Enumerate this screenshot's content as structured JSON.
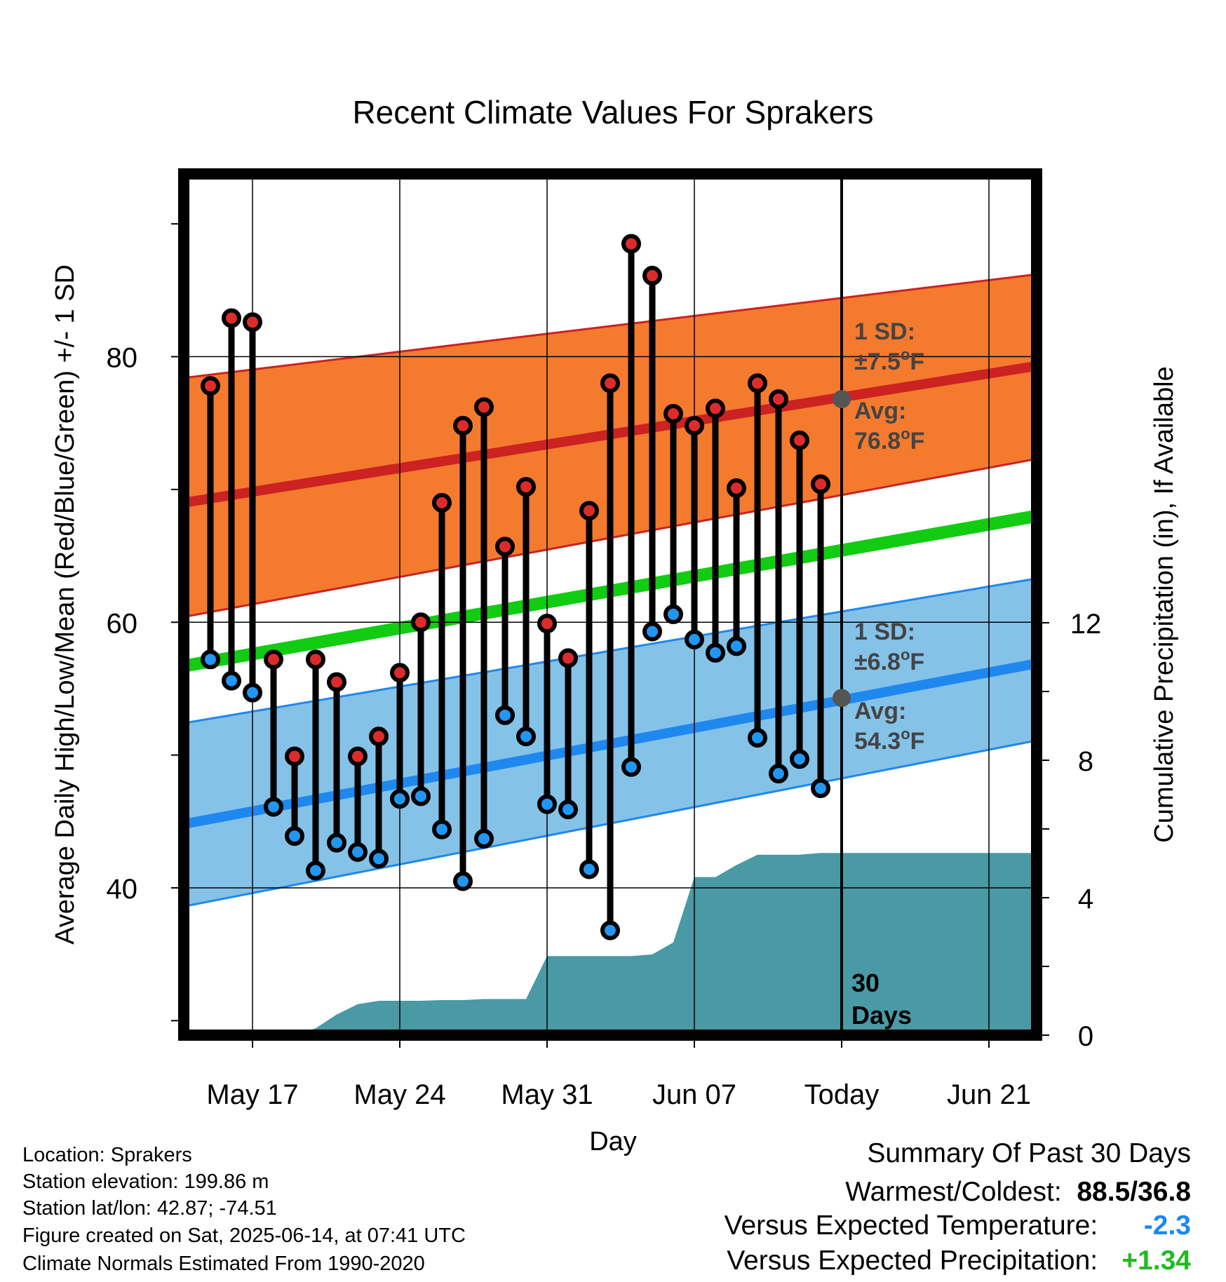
{
  "chart_data": {
    "type": "line",
    "title": "Recent Climate Values For Sprakers",
    "xlabel": "Day",
    "ylabel_left": "Average Daily High/Low/Mean (Red/Blue/Green) +/- 1 SD",
    "ylabel_right": "Cumulative Precipitation (in), If Available",
    "x_tick_labels": [
      "May 17",
      "May 24",
      "May 31",
      "Jun 07",
      "Today",
      "Jun 21"
    ],
    "y_left_ticks": [
      "40",
      "60",
      "80"
    ],
    "y_right_ticks": [
      "0",
      "4",
      "8",
      "12"
    ],
    "ylim_left": [
      29.1,
      94.1
    ],
    "ylim_right": [
      0,
      12
    ],
    "days_label": [
      "30",
      "Days"
    ],
    "normal_high": {
      "avg_start": 69.0,
      "avg_end": 79.3,
      "sd_lower_start": 60.4,
      "sd_lower_end": 72.3,
      "sd_upper_start": 78.4,
      "sd_upper_end": 86.2,
      "color": "#f47a2e",
      "line_color": "#cc2222"
    },
    "normal_low": {
      "avg_start": 44.8,
      "avg_end": 56.9,
      "sd_lower_start": 38.6,
      "sd_lower_end": 51.1,
      "sd_upper_start": 52.4,
      "sd_upper_end": 63.3,
      "color": "#85c2e8",
      "line_color": "#1e88ee"
    },
    "normal_mean": {
      "start": 56.7,
      "end": 68.0,
      "color": "#11cc11"
    },
    "annotations": [
      {
        "line1": "1 SD:",
        "line2_pre": "±7.5",
        "line2_unit": "F"
      },
      {
        "line1": "Avg:",
        "line2_pre": "76.8",
        "line2_unit": "F",
        "value": 76.8
      },
      {
        "line1": "1 SD:",
        "line2_pre": "±6.8",
        "line2_unit": "F"
      },
      {
        "line1": "Avg:",
        "line2_pre": "54.3",
        "line2_unit": "F",
        "value": 54.3
      }
    ],
    "dates": [
      "May 15",
      "May 16",
      "May 17",
      "May 18",
      "May 19",
      "May 20",
      "May 21",
      "May 22",
      "May 23",
      "May 24",
      "May 25",
      "May 26",
      "May 27",
      "May 28",
      "May 29",
      "May 30",
      "May 31",
      "Jun 01",
      "Jun 02",
      "Jun 03",
      "Jun 04",
      "Jun 05",
      "Jun 06",
      "Jun 07",
      "Jun 08",
      "Jun 09",
      "Jun 10",
      "Jun 11",
      "Jun 12",
      "Jun 13"
    ],
    "highs": [
      77.8,
      82.9,
      82.6,
      57.2,
      49.9,
      57.2,
      55.5,
      49.9,
      51.4,
      56.2,
      60.0,
      69.0,
      74.8,
      76.2,
      65.7,
      70.2,
      59.9,
      57.3,
      68.4,
      78.0,
      88.5,
      86.1,
      75.7,
      74.8,
      76.1,
      70.1,
      78.0,
      76.8,
      73.7,
      70.4
    ],
    "lows": [
      57.2,
      55.6,
      54.7,
      46.1,
      43.9,
      41.3,
      43.4,
      42.7,
      42.2,
      46.7,
      46.9,
      44.4,
      40.5,
      43.7,
      53.0,
      51.4,
      46.3,
      45.9,
      41.4,
      36.8,
      49.1,
      59.3,
      60.6,
      58.7,
      57.7,
      58.2,
      51.3,
      48.6,
      49.7,
      47.5
    ],
    "precip_x": [
      "May 15",
      "May 19",
      "May 20",
      "May 21",
      "May 22",
      "May 23",
      "May 24",
      "May 25",
      "May 26",
      "May 27",
      "May 28",
      "May 29",
      "May 30",
      "May 31",
      "Jun 01",
      "Jun 02",
      "Jun 03",
      "Jun 04",
      "Jun 05",
      "Jun 06",
      "Jun 07",
      "Jun 08",
      "Jun 09",
      "Jun 10",
      "Jun 11",
      "Jun 12",
      "Jun 13",
      "Jun 24"
    ],
    "precip_y": [
      0,
      0,
      0.2,
      0.6,
      0.9,
      1.0,
      1.0,
      1.0,
      1.02,
      1.02,
      1.05,
      1.05,
      1.05,
      2.3,
      2.3,
      2.3,
      2.3,
      2.3,
      2.35,
      2.7,
      4.6,
      4.6,
      4.95,
      5.25,
      5.25,
      5.25,
      5.3,
      5.3
    ],
    "precip_color": "#4a9aa5"
  },
  "info": {
    "location": "Location: Sprakers",
    "elevation": "Station elevation: 199.86 m",
    "latlon": "Station lat/lon: 42.87; -74.51",
    "created": "Figure created on Sat, 2025-06-14, at 07:41 UTC",
    "normals": "Climate Normals Estimated From 1990-2020"
  },
  "summary": {
    "heading": "Summary Of Past 30 Days",
    "warmest_label": "Warmest/Coldest:",
    "warmest_value": "88.5/36.8",
    "temp_label": "Versus Expected Temperature:",
    "temp_value": "-2.3",
    "temp_color": "#1e88ee",
    "precip_label": "Versus Expected Precipitation:",
    "precip_value": "+1.34",
    "precip_color": "#22bb22"
  }
}
